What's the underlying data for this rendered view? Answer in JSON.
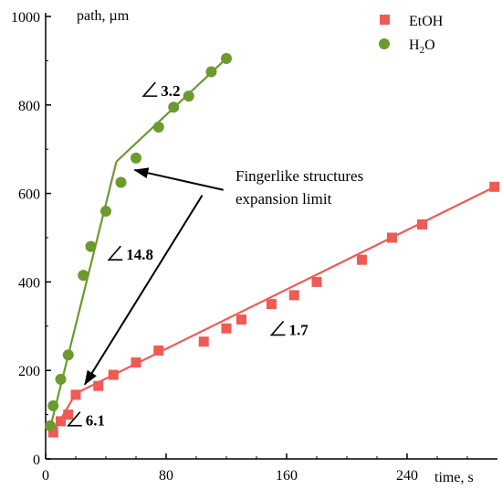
{
  "chart_data": {
    "type": "scatter",
    "xlabel": "time, s",
    "ylabel": "path, µm",
    "xlim": [
      0,
      300
    ],
    "ylim": [
      0,
      1000
    ],
    "x_ticks": [
      0,
      80,
      160,
      240
    ],
    "y_ticks": [
      0,
      200,
      400,
      600,
      800,
      1000
    ],
    "grid": false,
    "legend_position": "top-right",
    "series": [
      {
        "name": "EtOH",
        "marker": "square",
        "color": "#f05a55",
        "points": [
          [
            5,
            60
          ],
          [
            10,
            85
          ],
          [
            15,
            100
          ],
          [
            20,
            145
          ],
          [
            35,
            165
          ],
          [
            45,
            190
          ],
          [
            60,
            218
          ],
          [
            75,
            245
          ],
          [
            105,
            265
          ],
          [
            120,
            295
          ],
          [
            130,
            315
          ],
          [
            150,
            350
          ],
          [
            165,
            370
          ],
          [
            180,
            400
          ],
          [
            210,
            450
          ],
          [
            230,
            500
          ],
          [
            250,
            530
          ],
          [
            298,
            615
          ]
        ],
        "fit_lines": [
          [
            [
              5,
              60
            ],
            [
              20,
              148
            ]
          ],
          [
            [
              20,
              148
            ],
            [
              300,
              618
            ]
          ]
        ]
      },
      {
        "name": "H2O",
        "marker": "circle",
        "color": "#6b9a2e",
        "points": [
          [
            3,
            75
          ],
          [
            5,
            120
          ],
          [
            10,
            180
          ],
          [
            15,
            235
          ],
          [
            25,
            415
          ],
          [
            30,
            480
          ],
          [
            40,
            560
          ],
          [
            50,
            625
          ],
          [
            60,
            680
          ],
          [
            75,
            750
          ],
          [
            85,
            795
          ],
          [
            95,
            820
          ],
          [
            110,
            875
          ],
          [
            120,
            905
          ]
        ],
        "fit_lines": [
          [
            [
              3,
              70
            ],
            [
              47,
              672
            ]
          ],
          [
            [
              47,
              672
            ],
            [
              120,
              905
            ]
          ]
        ]
      }
    ],
    "annotations": {
      "angles": [
        {
          "text": "3.2",
          "x": 65,
          "y": 820
        },
        {
          "text": "14.8",
          "x": 42,
          "y": 450
        },
        {
          "text": "1.7",
          "x": 150,
          "y": 280
        },
        {
          "text": "6.1",
          "x": 15,
          "y": 75
        }
      ],
      "note_line1": "Fingerlike structures",
      "note_line2": "expansion limit",
      "arrows": [
        {
          "from": [
            118,
            608
          ],
          "to": [
            59,
            653
          ]
        },
        {
          "from": [
            104,
            596
          ],
          "to": [
            26,
            168
          ]
        }
      ]
    }
  }
}
